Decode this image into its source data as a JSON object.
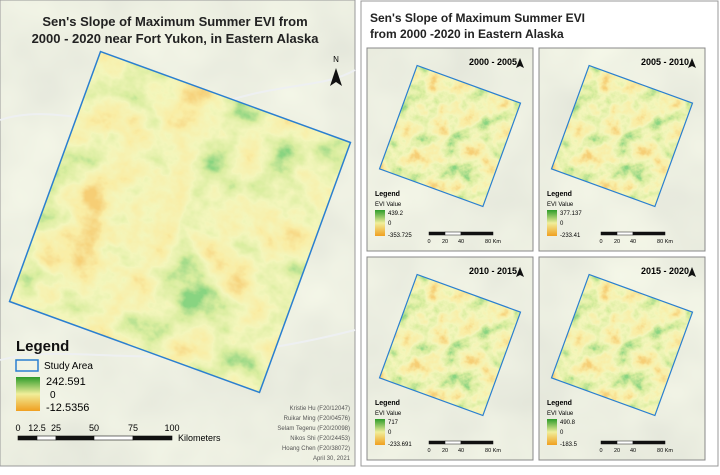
{
  "left_map": {
    "title_lines": [
      "Sen's Slope of Maximum Summer EVI from",
      "2000 - 2020 near Fort Yukon, in Eastern Alaska"
    ],
    "north": "N",
    "legend": {
      "title": "Legend",
      "study_area": "Study Area",
      "max": "242.591",
      "zero": "0",
      "min": "-12.5356"
    },
    "scale": {
      "ticks": [
        "0",
        "12.5",
        "25",
        "50",
        "75",
        "100"
      ],
      "unit": "Kilometers"
    },
    "credits": [
      "Kristie Hu (F20/12047)",
      "Ruikar Ming (F20/04576)",
      "Selam Tegenu (F20/20098)",
      "Nikos Shi (F20/24453)",
      "Hoang Chen (F20/38072)",
      "April 30, 2021"
    ]
  },
  "right_panel": {
    "title_lines": [
      "Sen's Slope of Maximum Summer EVI",
      "from 2000 -2020 in Eastern Alaska"
    ],
    "maps": [
      {
        "period": "2000 - 2005",
        "legend_title": "Legend",
        "value_title": "EVI Value",
        "max": "439.2",
        "zero": "0",
        "min": "-353.725",
        "scale": [
          "0",
          "20",
          "40",
          "80 Km"
        ]
      },
      {
        "period": "2005 - 2010",
        "legend_title": "Legend",
        "value_title": "EVI Value",
        "max": "377.137",
        "zero": "0",
        "min": "-233.41",
        "scale": [
          "0",
          "20",
          "40",
          "80 Km"
        ]
      },
      {
        "period": "2010 - 2015",
        "legend_title": "Legend",
        "value_title": "EVI Value",
        "max": "717",
        "zero": "0",
        "min": "-233.691",
        "scale": [
          "0",
          "20",
          "40",
          "80 Km"
        ]
      },
      {
        "period": "2015 - 2020",
        "legend_title": "Legend",
        "value_title": "EVI Value",
        "max": "490.8",
        "zero": "0",
        "min": "-183.5",
        "scale": [
          "0",
          "20",
          "40",
          "80 Km"
        ]
      }
    ]
  }
}
